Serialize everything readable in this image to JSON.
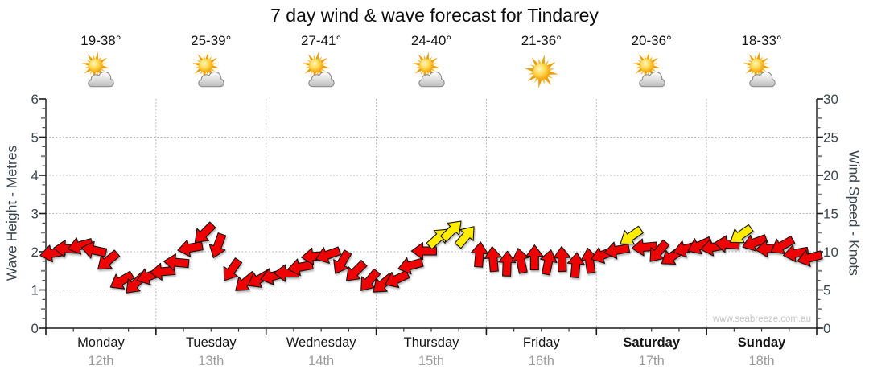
{
  "title": "7 day wind & wave forecast for Tindarey",
  "watermark": "www.seabreeze.com.au",
  "colors": {
    "arrow_red": "#ee0202",
    "arrow_yellow": "#ffec00",
    "grid": "#adadad",
    "axis": "#1a1a1a",
    "axis_text": "#3c474f",
    "day_text": "#161616",
    "date_text": "#9b9b9b",
    "watermark": "#c6c6c6",
    "sun_orange": "#ef9f06",
    "cloud_gray": "#bdbdbd"
  },
  "chart_data": {
    "type": "wind-arrows",
    "title": "7 day wind & wave forecast for Tindarey",
    "grid": "dotted",
    "x_axis": {
      "days": 7,
      "minor_ticks_per_day": 4
    },
    "y_left": {
      "label": "Wave Height - Metres",
      "min": 0,
      "max": 6,
      "ticks": [
        0,
        1,
        2,
        3,
        4,
        5,
        6
      ]
    },
    "y_right": {
      "label": "Wind Speed - Knots",
      "min": 0,
      "max": 30,
      "ticks": [
        0,
        5,
        10,
        15,
        20,
        25,
        30
      ]
    },
    "days": [
      {
        "name": "Monday",
        "date": "12th",
        "temp": "19-38°",
        "icon": "sun-cloud",
        "weekend": false
      },
      {
        "name": "Tuesday",
        "date": "13th",
        "temp": "25-39°",
        "icon": "sun-cloud",
        "weekend": false
      },
      {
        "name": "Wednesday",
        "date": "14th",
        "temp": "27-41°",
        "icon": "sun-cloud",
        "weekend": false
      },
      {
        "name": "Thursday",
        "date": "15th",
        "temp": "24-40°",
        "icon": "sun-cloud",
        "weekend": false
      },
      {
        "name": "Friday",
        "date": "16th",
        "temp": "21-36°",
        "icon": "sun",
        "weekend": false
      },
      {
        "name": "Saturday",
        "date": "17th",
        "temp": "20-36°",
        "icon": "sun-cloud",
        "weekend": true
      },
      {
        "name": "Sunday",
        "date": "18th",
        "temp": "18-33°",
        "icon": "sun-cloud",
        "weekend": true
      }
    ],
    "arrows": [
      {
        "knots": 9.8,
        "dir_deg": 170,
        "color": "red"
      },
      {
        "knots": 10.4,
        "dir_deg": 183,
        "color": "red"
      },
      {
        "knots": 10.8,
        "dir_deg": 165,
        "color": "red"
      },
      {
        "knots": 10.2,
        "dir_deg": 192,
        "color": "red"
      },
      {
        "knots": 8.8,
        "dir_deg": 140,
        "color": "red"
      },
      {
        "knots": 6.2,
        "dir_deg": 150,
        "color": "red"
      },
      {
        "knots": 5.8,
        "dir_deg": 135,
        "color": "red"
      },
      {
        "knots": 6.8,
        "dir_deg": 160,
        "color": "red"
      },
      {
        "knots": 7.4,
        "dir_deg": 175,
        "color": "red"
      },
      {
        "knots": 8.6,
        "dir_deg": 185,
        "color": "red"
      },
      {
        "knots": 10.5,
        "dir_deg": 170,
        "color": "red"
      },
      {
        "knots": 12.4,
        "dir_deg": 135,
        "color": "red"
      },
      {
        "knots": 10.8,
        "dir_deg": 110,
        "color": "red"
      },
      {
        "knots": 7.6,
        "dir_deg": 125,
        "color": "red"
      },
      {
        "knots": 6.0,
        "dir_deg": 140,
        "color": "red"
      },
      {
        "knots": 6.4,
        "dir_deg": 150,
        "color": "red"
      },
      {
        "knots": 6.8,
        "dir_deg": 165,
        "color": "red"
      },
      {
        "knots": 7.2,
        "dir_deg": 180,
        "color": "red"
      },
      {
        "knots": 8.0,
        "dir_deg": 170,
        "color": "red"
      },
      {
        "knots": 9.4,
        "dir_deg": 175,
        "color": "red"
      },
      {
        "knots": 9.6,
        "dir_deg": 160,
        "color": "red"
      },
      {
        "knots": 8.6,
        "dir_deg": 120,
        "color": "red"
      },
      {
        "knots": 7.4,
        "dir_deg": 135,
        "color": "red"
      },
      {
        "knots": 6.2,
        "dir_deg": 130,
        "color": "red"
      },
      {
        "knots": 5.8,
        "dir_deg": 140,
        "color": "red"
      },
      {
        "knots": 6.4,
        "dir_deg": 155,
        "color": "red"
      },
      {
        "knots": 8.2,
        "dir_deg": 165,
        "color": "red"
      },
      {
        "knots": 10.1,
        "dir_deg": 180,
        "color": "red"
      },
      {
        "knots": 11.8,
        "dir_deg": 318,
        "color": "yellow"
      },
      {
        "knots": 12.8,
        "dir_deg": 315,
        "color": "yellow"
      },
      {
        "knots": 12.0,
        "dir_deg": 310,
        "color": "yellow"
      },
      {
        "knots": 9.6,
        "dir_deg": 275,
        "color": "red"
      },
      {
        "knots": 9.0,
        "dir_deg": 265,
        "color": "red"
      },
      {
        "knots": 8.4,
        "dir_deg": 272,
        "color": "red"
      },
      {
        "knots": 8.8,
        "dir_deg": 258,
        "color": "red"
      },
      {
        "knots": 9.2,
        "dir_deg": 270,
        "color": "red"
      },
      {
        "knots": 8.6,
        "dir_deg": 282,
        "color": "red"
      },
      {
        "knots": 9.0,
        "dir_deg": 268,
        "color": "red"
      },
      {
        "knots": 8.2,
        "dir_deg": 275,
        "color": "red"
      },
      {
        "knots": 8.8,
        "dir_deg": 262,
        "color": "red"
      },
      {
        "knots": 9.6,
        "dir_deg": 160,
        "color": "red"
      },
      {
        "knots": 10.2,
        "dir_deg": 170,
        "color": "red"
      },
      {
        "knots": 12.0,
        "dir_deg": 145,
        "color": "yellow"
      },
      {
        "knots": 10.6,
        "dir_deg": 175,
        "color": "red"
      },
      {
        "knots": 10.0,
        "dir_deg": 130,
        "color": "red"
      },
      {
        "knots": 9.4,
        "dir_deg": 145,
        "color": "red"
      },
      {
        "knots": 10.4,
        "dir_deg": 165,
        "color": "red"
      },
      {
        "knots": 10.8,
        "dir_deg": 155,
        "color": "red"
      },
      {
        "knots": 10.6,
        "dir_deg": 170,
        "color": "red"
      },
      {
        "knots": 11.0,
        "dir_deg": 185,
        "color": "red"
      },
      {
        "knots": 12.2,
        "dir_deg": 145,
        "color": "yellow"
      },
      {
        "knots": 11.2,
        "dir_deg": 160,
        "color": "red"
      },
      {
        "knots": 10.4,
        "dir_deg": 175,
        "color": "red"
      },
      {
        "knots": 10.8,
        "dir_deg": 150,
        "color": "red"
      },
      {
        "knots": 9.8,
        "dir_deg": 170,
        "color": "red"
      },
      {
        "knots": 9.2,
        "dir_deg": 165,
        "color": "red"
      }
    ]
  }
}
